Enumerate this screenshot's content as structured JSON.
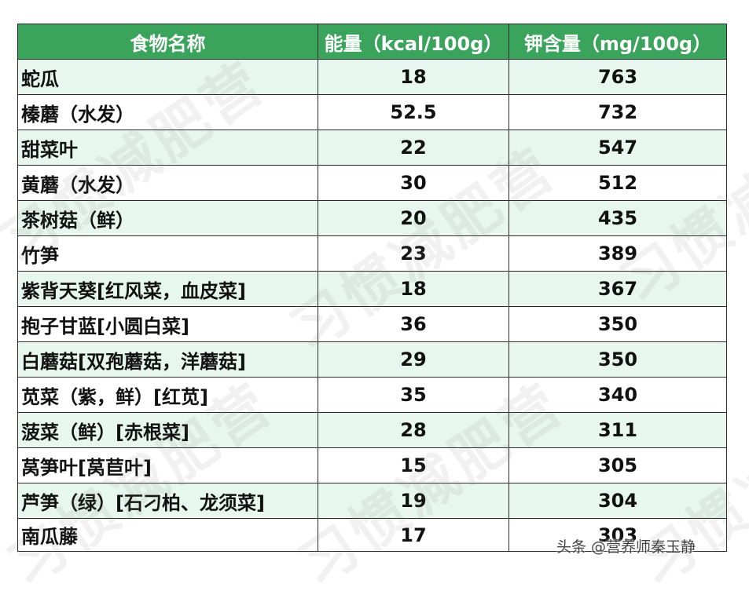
{
  "table": {
    "headers": [
      "食物名称",
      "能量（kcal/100g）",
      "钾含量（mg/100g）"
    ],
    "rows": [
      {
        "name": "蛇瓜",
        "energy": "18",
        "potassium": "763"
      },
      {
        "name": "榛蘑（水发）",
        "energy": "52.5",
        "potassium": "732"
      },
      {
        "name": "甜菜叶",
        "energy": "22",
        "potassium": "547"
      },
      {
        "name": "黄蘑（水发）",
        "energy": "30",
        "potassium": "512"
      },
      {
        "name": "茶树菇（鲜）",
        "energy": "20",
        "potassium": "435"
      },
      {
        "name": "竹笋",
        "energy": "23",
        "potassium": "389"
      },
      {
        "name": "紫背天葵[红风菜，血皮菜]",
        "energy": "18",
        "potassium": "367"
      },
      {
        "name": "抱子甘蓝[小圆白菜]",
        "energy": "36",
        "potassium": "350"
      },
      {
        "name": "白蘑菇[双孢蘑菇，洋蘑菇]",
        "energy": "29",
        "potassium": "350"
      },
      {
        "name": "苋菜（紫，鲜）[红苋]",
        "energy": "35",
        "potassium": "340"
      },
      {
        "name": "菠菜（鲜）[赤根菜]",
        "energy": "28",
        "potassium": "311"
      },
      {
        "name": "莴笋叶[莴苣叶]",
        "energy": "15",
        "potassium": "305"
      },
      {
        "name": "芦笋（绿）[石刁柏、龙须菜]",
        "energy": "19",
        "potassium": "304"
      },
      {
        "name": "南瓜藤",
        "energy": "17",
        "potassium": "303"
      }
    ]
  },
  "watermark": "习惯减肥营",
  "credit": "头条 @营养师秦玉静",
  "colors": {
    "header_bg": "#3aa35c",
    "header_text": "#ffffff",
    "row_alt_bg": "#e7f6ef",
    "border": "#2b2b2b"
  }
}
